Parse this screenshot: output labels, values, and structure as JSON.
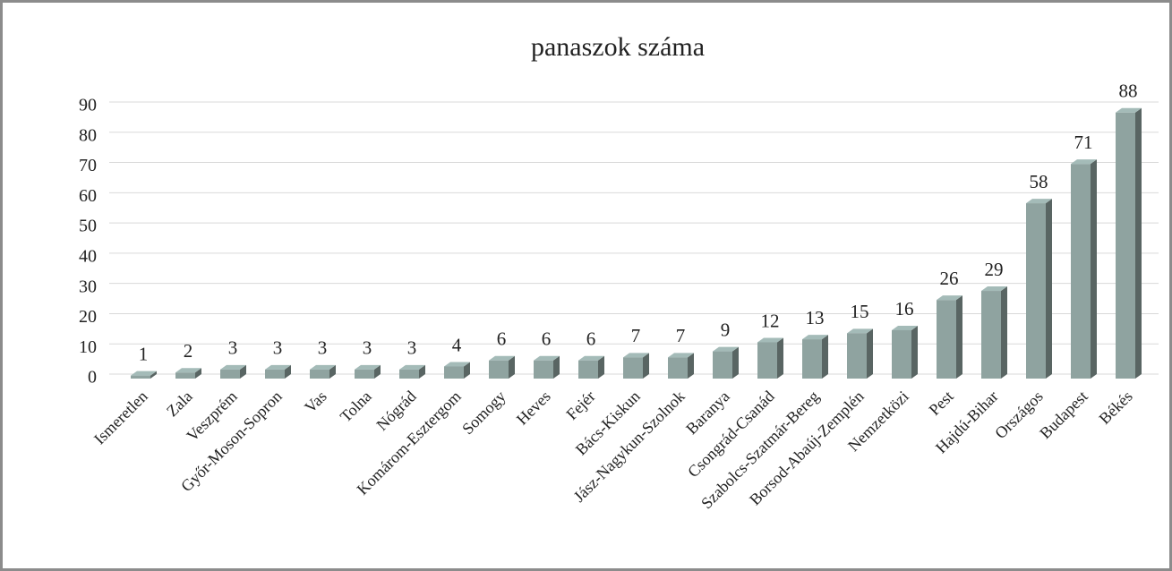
{
  "chart_data": {
    "type": "bar3d",
    "title": "panaszok száma",
    "categories": [
      "Ismeretlen",
      "Zala",
      "Veszprém",
      "Győr-Moson-Sopron",
      "Vas",
      "Tolna",
      "Nógrád",
      "Komárom-Esztergom",
      "Somogy",
      "Heves",
      "Fejér",
      "Bács-Kiskun",
      "Jász-Nagykun-Szolnok",
      "Baranya",
      "Csongrád-Csanád",
      "Szabolcs-Szatmár-Bereg",
      "Borsod-Abaúj-Zemplén",
      "Nemzetközi",
      "Pest",
      "Hajdú-Bihar",
      "Országos",
      "Budapest",
      "Békés"
    ],
    "values": [
      1,
      2,
      3,
      3,
      3,
      3,
      3,
      4,
      6,
      6,
      6,
      7,
      7,
      9,
      12,
      13,
      15,
      16,
      26,
      29,
      58,
      71,
      88
    ],
    "color": "#8fa3a0",
    "ylim": [
      0,
      90
    ],
    "yticks": [
      0,
      10,
      20,
      30,
      40,
      50,
      60,
      70,
      80,
      90
    ],
    "grid": true
  }
}
